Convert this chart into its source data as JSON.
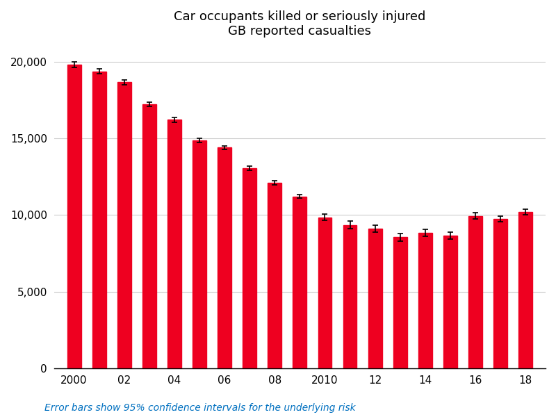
{
  "title_line1": "Car occupants killed or seriously injured",
  "title_line2": "GB reported casualties",
  "bar_color": "#ee0020",
  "years": [
    2000,
    2001,
    2002,
    2003,
    2004,
    2005,
    2006,
    2007,
    2008,
    2009,
    2010,
    2011,
    2012,
    2013,
    2014,
    2015,
    2016,
    2017,
    2018
  ],
  "x_tick_labels": [
    "2000",
    "02",
    "04",
    "06",
    "08",
    "2010",
    "12",
    "14",
    "16",
    "18"
  ],
  "x_tick_positions": [
    2000,
    2002,
    2004,
    2006,
    2008,
    2010,
    2012,
    2014,
    2016,
    2018
  ],
  "values": [
    19780,
    19350,
    18650,
    17200,
    16200,
    14850,
    14400,
    13050,
    12100,
    11200,
    9850,
    9350,
    9100,
    8550,
    8850,
    8650,
    9950,
    9750,
    10200
  ],
  "errors": [
    180,
    160,
    170,
    140,
    150,
    130,
    120,
    130,
    120,
    110,
    200,
    250,
    220,
    230,
    220,
    220,
    190,
    180,
    190
  ],
  "ylim": [
    0,
    21000
  ],
  "y_ticks": [
    0,
    5000,
    10000,
    15000,
    20000
  ],
  "y_tick_labels": [
    "0",
    "5,000",
    "10,000",
    "15,000",
    "20,000"
  ],
  "footnote": "Error bars show 95% confidence intervals for the underlying risk",
  "footnote_color": "#0070c0",
  "background_color": "#ffffff",
  "grid_color": "#cccccc",
  "title_fontsize": 13,
  "tick_fontsize": 11,
  "footnote_fontsize": 10,
  "bar_width": 0.55,
  "xlim_left": 1999.2,
  "xlim_right": 2018.8
}
